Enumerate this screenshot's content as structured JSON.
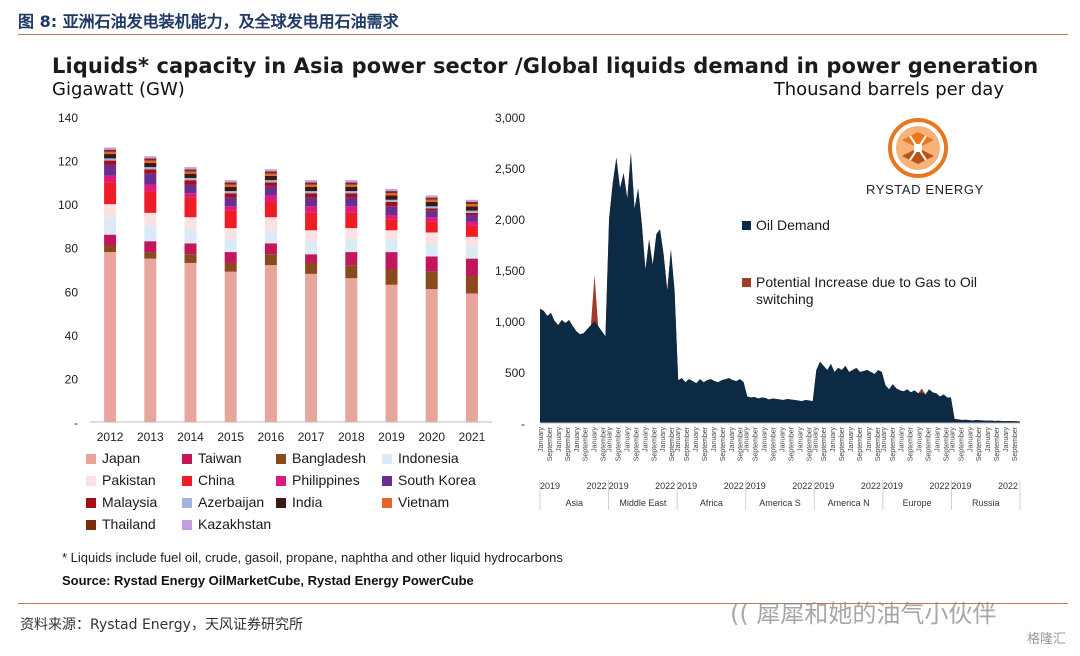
{
  "figure_caption": "图 8:  亚洲石油发电装机能力，及全球发电用石油需求",
  "main_title": "Liquids* capacity in Asia power sector /Global liquids demand in power generation",
  "footnote": "* Liquids include fuel oil, crude, gasoil, propane, naphtha and other liquid hydrocarbons",
  "source_line": "Source: Rystad Energy OilMarketCube, Rystad Energy PowerCube",
  "source_cn": "资料来源：Rystad Energy，天风证券研究所",
  "watermark": "(( 犀犀和她的油气小伙伴",
  "watermark_badge": "格隆汇",
  "logo_text": "RYSTAD ENERGY",
  "chart_data": [
    {
      "type": "bar",
      "stacked": true,
      "ylabel": "Gigawatt (GW)",
      "ylim": [
        0,
        140
      ],
      "yticks": [
        "-",
        "20",
        "40",
        "60",
        "80",
        "100",
        "120",
        "140"
      ],
      "categories": [
        "2012",
        "2013",
        "2014",
        "2015",
        "2016",
        "2017",
        "2018",
        "2019",
        "2020",
        "2021"
      ],
      "series": [
        {
          "name": "Japan",
          "color": "#e8a59c",
          "values": [
            78,
            75,
            73,
            69,
            72,
            68,
            66,
            63,
            61,
            59
          ]
        },
        {
          "name": "Bangladesh",
          "color": "#8b4a1e",
          "values": [
            3,
            3,
            4,
            4,
            5,
            5,
            6,
            7,
            8,
            8
          ]
        },
        {
          "name": "Taiwan",
          "color": "#c0185a",
          "values": [
            5,
            5,
            5,
            5,
            5,
            4,
            6,
            8,
            7,
            8
          ]
        },
        {
          "name": "Indonesia",
          "color": "#dce9f6",
          "values": [
            8,
            7,
            7,
            6,
            6,
            6,
            6,
            6,
            6,
            6
          ]
        },
        {
          "name": "Pakistan",
          "color": "#fbe1e2",
          "values": [
            6,
            6,
            5,
            5,
            6,
            5,
            5,
            4,
            5,
            4
          ]
        },
        {
          "name": "China",
          "color": "#ee1c25",
          "values": [
            10,
            10,
            9,
            8,
            7,
            8,
            7,
            5,
            5,
            5
          ]
        },
        {
          "name": "Philippines",
          "color": "#e0197d",
          "values": [
            3,
            3,
            2,
            2,
            3,
            3,
            3,
            2,
            2,
            2
          ]
        },
        {
          "name": "South Korea",
          "color": "#6a2d91",
          "values": [
            5,
            5,
            4,
            4,
            4,
            4,
            4,
            4,
            3,
            3
          ]
        },
        {
          "name": "Malaysia",
          "color": "#a50f15",
          "values": [
            2,
            2,
            2,
            2,
            2,
            2,
            2,
            2,
            1,
            1
          ]
        },
        {
          "name": "Azerbaijan",
          "color": "#9fb5e0",
          "values": [
            1,
            1,
            1,
            1,
            1,
            1,
            1,
            1,
            1,
            1
          ]
        },
        {
          "name": "India",
          "color": "#3a1a12",
          "values": [
            2,
            2,
            2,
            2,
            2,
            2,
            2,
            2,
            2,
            2
          ]
        },
        {
          "name": "Vietnam",
          "color": "#e8622e",
          "values": [
            1,
            1,
            1,
            1,
            1,
            1,
            1,
            1,
            1,
            1
          ]
        },
        {
          "name": "Thailand",
          "color": "#7a2e0e",
          "values": [
            1,
            1,
            1,
            1,
            1,
            1,
            1,
            1,
            1,
            1
          ]
        },
        {
          "name": "Kazakhstan",
          "color": "#c79be0",
          "values": [
            1,
            1,
            1,
            1,
            1,
            1,
            1,
            1,
            1,
            1
          ]
        }
      ],
      "legend_order": [
        "Japan",
        "Taiwan",
        "Bangladesh",
        "Indonesia",
        "Pakistan",
        "China",
        "Philippines",
        "South Korea",
        "Malaysia",
        "Azerbaijan",
        "India",
        "Vietnam",
        "Thailand",
        "Kazakhstan"
      ],
      "legend_placement": "bottom"
    },
    {
      "type": "area",
      "ylabel": "Thousand barrels per day",
      "ylim": [
        0,
        3000
      ],
      "yticks": [
        "-",
        "500",
        "1,000",
        "1,500",
        "2,000",
        "2,500",
        "3,000"
      ],
      "series": [
        {
          "name": "Oil Demand",
          "color": "#0d2a44"
        },
        {
          "name": "Potential Increase due to Gas to Oil switching",
          "color": "#a33a2a"
        }
      ],
      "regions": [
        {
          "name": "Asia",
          "oil_demand": [
            1120,
            1100,
            1050,
            1080,
            1000,
            960,
            1010,
            980,
            1010,
            950,
            900,
            870,
            880,
            920,
            960,
            1000,
            950,
            900,
            850
          ],
          "potential_increase": [
            0,
            0,
            0,
            0,
            0,
            0,
            0,
            0,
            0,
            0,
            0,
            0,
            0,
            0,
            0,
            450,
            0,
            0,
            0
          ]
        },
        {
          "name": "Middle East",
          "oil_demand": [
            2000,
            2350,
            2600,
            2300,
            2450,
            2200,
            2650,
            2100,
            2300,
            1950,
            1500,
            1800,
            1550,
            1850,
            1900,
            1650,
            1300,
            1700,
            1300
          ],
          "potential_increase": [
            0,
            0,
            0,
            0,
            0,
            0,
            0,
            0,
            0,
            0,
            0,
            0,
            0,
            0,
            0,
            0,
            0,
            0,
            0
          ]
        },
        {
          "name": "Africa",
          "oil_demand": [
            420,
            440,
            400,
            430,
            410,
            390,
            430,
            400,
            420,
            430,
            410,
            400,
            420,
            430,
            440,
            420,
            410,
            430,
            400
          ],
          "potential_increase": [
            0,
            0,
            0,
            0,
            0,
            0,
            0,
            0,
            0,
            0,
            0,
            0,
            0,
            0,
            0,
            0,
            0,
            0,
            0
          ]
        },
        {
          "name": "America S",
          "oil_demand": [
            260,
            250,
            255,
            240,
            250,
            245,
            230,
            240,
            235,
            230,
            225,
            235,
            230,
            225,
            220,
            215,
            225,
            220,
            215
          ],
          "potential_increase": [
            0,
            0,
            0,
            0,
            0,
            0,
            0,
            0,
            0,
            0,
            0,
            0,
            0,
            0,
            0,
            0,
            0,
            0,
            0
          ]
        },
        {
          "name": "America N",
          "oil_demand": [
            520,
            600,
            560,
            520,
            580,
            500,
            540,
            520,
            560,
            500,
            520,
            540,
            500,
            510,
            520,
            500,
            480,
            520,
            500
          ],
          "potential_increase": [
            0,
            0,
            0,
            0,
            0,
            0,
            0,
            0,
            0,
            0,
            0,
            0,
            0,
            0,
            0,
            0,
            0,
            0,
            0
          ]
        },
        {
          "name": "Europe",
          "oil_demand": [
            370,
            330,
            380,
            340,
            320,
            310,
            330,
            300,
            320,
            290,
            300,
            280,
            330,
            300,
            290,
            260,
            280,
            250,
            250
          ],
          "potential_increase": [
            0,
            0,
            0,
            0,
            0,
            0,
            0,
            0,
            0,
            0,
            40,
            0,
            0,
            0,
            0,
            0,
            0,
            0,
            0
          ]
        },
        {
          "name": "Russia",
          "oil_demand": [
            40,
            35,
            30,
            32,
            28,
            25,
            30,
            27,
            25,
            22,
            25,
            20,
            22,
            20,
            18,
            20,
            18,
            17,
            15
          ],
          "potential_increase": [
            0,
            0,
            0,
            0,
            0,
            0,
            0,
            0,
            0,
            0,
            0,
            0,
            0,
            0,
            0,
            0,
            0,
            0,
            0
          ]
        }
      ],
      "x_month_labels": [
        "January",
        "September"
      ],
      "x_year_labels": [
        "2019",
        "2022"
      ],
      "legend_placement": "right"
    }
  ]
}
